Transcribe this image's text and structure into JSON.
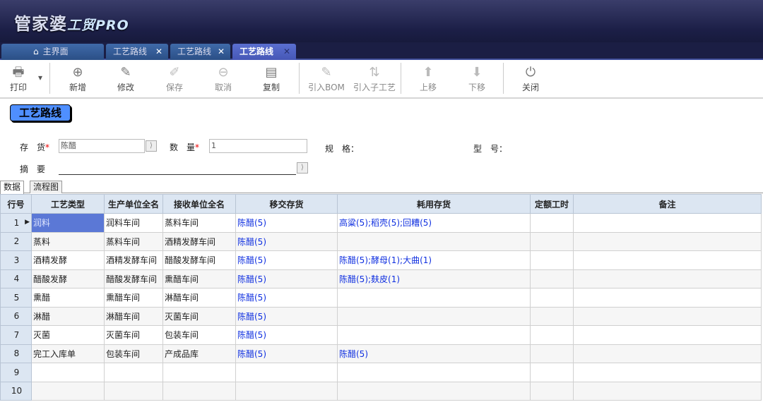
{
  "app": {
    "logo": "管家婆",
    "logo_sub": "工贸PRO"
  },
  "tabs": [
    {
      "label": "主界面",
      "icon": "home-icon"
    },
    {
      "label": "工艺路线",
      "close": "✕"
    },
    {
      "label": "工艺路线",
      "close": "✕"
    },
    {
      "label": "工艺路线",
      "close": "✕",
      "active": true
    }
  ],
  "toolbar": [
    {
      "label": "打印",
      "icon": "printer-icon"
    },
    {
      "label": "新增",
      "icon": "plus-circle-icon"
    },
    {
      "label": "修改",
      "icon": "edit-icon"
    },
    {
      "label": "保存",
      "icon": "save-icon",
      "disabled": true
    },
    {
      "label": "取消",
      "icon": "minus-circle-icon",
      "disabled": true
    },
    {
      "label": "复制",
      "icon": "copy-icon"
    },
    {
      "label": "引入BOM",
      "icon": "edit-icon",
      "disabled": true
    },
    {
      "label": "引入子工艺",
      "icon": "sort-icon",
      "disabled": true
    },
    {
      "label": "上移",
      "icon": "arrow-up-icon",
      "disabled": true
    },
    {
      "label": "下移",
      "icon": "arrow-down-icon",
      "disabled": true
    },
    {
      "label": "关闭",
      "icon": "power-icon"
    }
  ],
  "page_title": "工艺路线",
  "form": {
    "inventory_label": "存　货",
    "inventory_value": "陈醋",
    "quantity_label": "数　量",
    "quantity_value": "1",
    "spec_label": "规　格：",
    "model_label": "型　号：",
    "summary_label": "摘　要",
    "summary_value": ""
  },
  "subtabs": [
    "数据",
    "流程图"
  ],
  "table": {
    "columns": [
      "行号",
      "工艺类型",
      "生产单位全名",
      "接收单位全名",
      "移交存货",
      "耗用存货",
      "定额工时",
      "备注"
    ],
    "rows": [
      [
        "1",
        "润料",
        "润料车间",
        "蒸料车间",
        "陈醋(5)",
        "高粱(5);稻壳(5);回糟(5)",
        "",
        ""
      ],
      [
        "2",
        "蒸料",
        "蒸料车间",
        "酒精发酵车间",
        "陈醋(5)",
        "",
        "",
        ""
      ],
      [
        "3",
        "酒精发酵",
        "酒精发酵车间",
        "醋酸发酵车间",
        "陈醋(5)",
        "陈醋(5);酵母(1);大曲(1)",
        "",
        ""
      ],
      [
        "4",
        "醋酸发酵",
        "醋酸发酵车间",
        "熏醋车间",
        "陈醋(5)",
        "陈醋(5);麸皮(1)",
        "",
        ""
      ],
      [
        "5",
        "熏醋",
        "熏醋车间",
        "淋醋车间",
        "陈醋(5)",
        "",
        "",
        ""
      ],
      [
        "6",
        "淋醋",
        "淋醋车间",
        "灭菌车间",
        "陈醋(5)",
        "",
        "",
        ""
      ],
      [
        "7",
        "灭菌",
        "灭菌车间",
        "包装车间",
        "陈醋(5)",
        "",
        "",
        ""
      ],
      [
        "8",
        "完工入库单",
        "包装车间",
        "产成品库",
        "陈醋(5)",
        "陈醋(5)",
        "",
        ""
      ],
      [
        "9",
        "",
        "",
        "",
        "",
        "",
        "",
        ""
      ],
      [
        "10",
        "",
        "",
        "",
        "",
        "",
        "",
        ""
      ]
    ]
  },
  "colors": {
    "banner": "#1c1f47",
    "active_tab": "#4657b6",
    "link": "#1030e0",
    "selected_cell": "#5b78d6",
    "title_badge": "#4f8fff"
  }
}
